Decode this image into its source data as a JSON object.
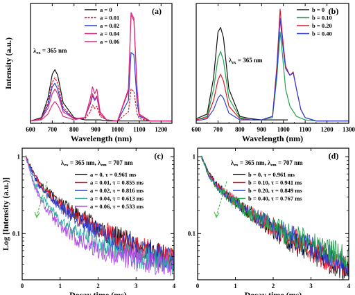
{
  "colors": {
    "black": "#111111",
    "red": "#e0182d",
    "blue": "#2a3fd6",
    "green": "#1fa34a",
    "magenta": "#d8287a",
    "cyan": "#2aa8a0",
    "purple": "#b34ce6",
    "olive": "#4f5a2a",
    "dashed_arrow": "#4fbf4f"
  },
  "chart_data": [
    {
      "type": "line",
      "panel": "(a)",
      "xlabel": "Wavelength (nm)",
      "ylabel": "Intensity (a.u.)",
      "xlim": [
        600,
        1250
      ],
      "xticks": [
        600,
        700,
        800,
        900,
        1000,
        1100,
        1200
      ],
      "ylim": [
        0,
        1.05
      ],
      "y_ticks_shown": false,
      "annotation": {
        "main": "λ",
        "sub": "ex",
        "rest": " = 365 nm"
      },
      "legend_position": "top-center",
      "series": [
        {
          "name": "a = 0",
          "color": "black",
          "x": [
            600,
            650,
            680,
            700,
            712,
            725,
            750,
            800,
            850,
            875,
            890,
            900,
            920,
            950,
            1000,
            1050,
            1062,
            1075,
            1100,
            1150,
            1250
          ],
          "y": [
            0.02,
            0.05,
            0.22,
            0.43,
            0.47,
            0.42,
            0.18,
            0.05,
            0.03,
            0.03,
            0.03,
            0.03,
            0.03,
            0.02,
            0.02,
            0.02,
            0.02,
            0.02,
            0.02,
            0.02,
            0.02
          ]
        },
        {
          "name": "a = 0.01",
          "color": "red",
          "dashed": true,
          "x": [
            600,
            650,
            680,
            700,
            712,
            725,
            750,
            800,
            850,
            875,
            885,
            895,
            905,
            920,
            950,
            1000,
            1050,
            1062,
            1075,
            1090,
            1100,
            1150,
            1250
          ],
          "y": [
            0.02,
            0.04,
            0.18,
            0.36,
            0.4,
            0.35,
            0.14,
            0.04,
            0.04,
            0.1,
            0.16,
            0.13,
            0.15,
            0.06,
            0.03,
            0.02,
            0.1,
            0.3,
            0.28,
            0.08,
            0.04,
            0.02,
            0.02
          ]
        },
        {
          "name": "a = 0.02",
          "color": "blue",
          "x": [
            600,
            650,
            680,
            700,
            712,
            725,
            750,
            800,
            850,
            875,
            885,
            895,
            905,
            920,
            950,
            1000,
            1050,
            1062,
            1075,
            1090,
            1100,
            1150,
            1250
          ],
          "y": [
            0.02,
            0.04,
            0.16,
            0.32,
            0.35,
            0.3,
            0.12,
            0.04,
            0.05,
            0.17,
            0.24,
            0.2,
            0.23,
            0.08,
            0.03,
            0.02,
            0.2,
            0.62,
            0.6,
            0.18,
            0.06,
            0.02,
            0.02
          ]
        },
        {
          "name": "a = 0.04",
          "color": "magenta",
          "x": [
            600,
            650,
            680,
            700,
            712,
            725,
            750,
            800,
            850,
            875,
            885,
            895,
            905,
            920,
            950,
            1000,
            1050,
            1062,
            1075,
            1090,
            1100,
            1150,
            1250
          ],
          "y": [
            0.02,
            0.04,
            0.13,
            0.26,
            0.3,
            0.26,
            0.1,
            0.04,
            0.05,
            0.22,
            0.32,
            0.26,
            0.3,
            0.1,
            0.03,
            0.02,
            0.3,
            0.97,
            0.92,
            0.3,
            0.08,
            0.02,
            0.02
          ]
        },
        {
          "name": "a = 0.06",
          "color": "magenta",
          "x": [
            600,
            650,
            680,
            700,
            712,
            725,
            750,
            800,
            850,
            875,
            885,
            895,
            905,
            920,
            950,
            1000,
            1050,
            1062,
            1075,
            1090,
            1100,
            1150,
            1250
          ],
          "y": [
            0.02,
            0.03,
            0.08,
            0.16,
            0.19,
            0.16,
            0.06,
            0.03,
            0.05,
            0.18,
            0.26,
            0.21,
            0.24,
            0.08,
            0.03,
            0.02,
            0.28,
            0.95,
            0.9,
            0.28,
            0.07,
            0.02,
            0.02
          ]
        }
      ]
    },
    {
      "type": "line",
      "panel": "(b)",
      "xlabel": "Wavelength (nm)",
      "ylabel": "",
      "xlim": [
        600,
        1300
      ],
      "xticks": [
        600,
        700,
        800,
        900,
        1000,
        1100,
        1200,
        1300
      ],
      "ylim": [
        0,
        1.05
      ],
      "y_ticks_shown": false,
      "annotation": {
        "main": "λ",
        "sub": "ex",
        "rest": " = 365 nm"
      },
      "legend_position": "top-right",
      "series": [
        {
          "name": "b = 0",
          "color": "black",
          "x": [
            600,
            650,
            680,
            700,
            712,
            725,
            750,
            800,
            850,
            900,
            950,
            975,
            990,
            1000,
            1010,
            1020
          ],
          "y": [
            0.04,
            0.08,
            0.4,
            0.8,
            0.84,
            0.75,
            0.3,
            0.06,
            0.04,
            0.03,
            0.03,
            0.03,
            0.03,
            0.03,
            0.03,
            0.03
          ]
        },
        {
          "name": "b = 0.10",
          "color": "green",
          "x": [
            600,
            650,
            680,
            700,
            712,
            725,
            750,
            800,
            850,
            900,
            950,
            970,
            985,
            995,
            1010,
            1030,
            1060,
            1100,
            1150,
            1200,
            1300
          ],
          "y": [
            0.03,
            0.06,
            0.3,
            0.57,
            0.63,
            0.55,
            0.22,
            0.05,
            0.03,
            0.03,
            0.05,
            0.4,
            0.8,
            0.62,
            0.3,
            0.15,
            0.06,
            0.03,
            0.02,
            0.02,
            0.02
          ]
        },
        {
          "name": "b = 0.20",
          "color": "red",
          "x": [
            600,
            650,
            680,
            700,
            712,
            725,
            750,
            800,
            850,
            900,
            950,
            970,
            985,
            995,
            1010,
            1030,
            1045,
            1060,
            1080,
            1100,
            1150,
            1200,
            1300
          ],
          "y": [
            0.03,
            0.05,
            0.2,
            0.38,
            0.43,
            0.37,
            0.15,
            0.04,
            0.03,
            0.03,
            0.06,
            0.5,
            1.0,
            0.78,
            0.5,
            0.42,
            0.45,
            0.3,
            0.12,
            0.05,
            0.02,
            0.02,
            0.02
          ]
        },
        {
          "name": "b = 0.40",
          "color": "blue",
          "x": [
            600,
            650,
            680,
            700,
            712,
            725,
            750,
            800,
            850,
            900,
            950,
            970,
            985,
            995,
            1010,
            1030,
            1045,
            1060,
            1080,
            1100,
            1150,
            1200,
            1300
          ],
          "y": [
            0.02,
            0.04,
            0.12,
            0.22,
            0.25,
            0.22,
            0.09,
            0.03,
            0.03,
            0.03,
            0.06,
            0.45,
            0.92,
            0.72,
            0.48,
            0.42,
            0.44,
            0.3,
            0.12,
            0.05,
            0.02,
            0.02,
            0.02
          ]
        }
      ]
    },
    {
      "type": "line",
      "panel": "(c)",
      "xlabel": "Decay time (ms)",
      "ylabel": "Log [Intensity (a.u.)]",
      "xlim": [
        0,
        4
      ],
      "xticks": [
        0,
        1,
        2,
        3,
        4
      ],
      "ylim": [
        0.025,
        1.3
      ],
      "yscale": "log",
      "yticks": [
        1,
        0.1
      ],
      "ytick_labels": [
        "1",
        "0.1"
      ],
      "annotation": {
        "main": "λ",
        "sub": "ex",
        "rest": " = 365 nm, λ",
        "sub2": "em",
        "rest2": " = 707 nm"
      },
      "legend_position": "top-right",
      "series": [
        {
          "name": "a = 0, τ = 0.961 ms",
          "color": "black",
          "x": [
            0.1,
            0.3,
            0.5,
            1,
            1.5,
            2,
            2.5,
            3,
            3.5,
            4
          ],
          "y": [
            1,
            0.6,
            0.42,
            0.25,
            0.17,
            0.12,
            0.09,
            0.07,
            0.055,
            0.045
          ]
        },
        {
          "name": "a = 0.01, τ = 0.855 ms",
          "color": "red",
          "x": [
            0.1,
            0.3,
            0.5,
            1,
            1.5,
            2,
            2.5,
            3,
            3.5,
            4
          ],
          "y": [
            1,
            0.59,
            0.41,
            0.24,
            0.16,
            0.115,
            0.088,
            0.068,
            0.055,
            0.046
          ]
        },
        {
          "name": "a = 0.02, τ = 0.816 ms",
          "color": "blue",
          "x": [
            0.1,
            0.3,
            0.5,
            1,
            1.5,
            2,
            2.5,
            3,
            3.5,
            4
          ],
          "y": [
            1,
            0.56,
            0.38,
            0.22,
            0.15,
            0.105,
            0.08,
            0.063,
            0.052,
            0.045
          ]
        },
        {
          "name": "a = 0.04, τ = 0.613 ms",
          "color": "cyan",
          "x": [
            0.1,
            0.3,
            0.5,
            1,
            1.5,
            2,
            2.5,
            3,
            3.5,
            4
          ],
          "y": [
            1,
            0.48,
            0.3,
            0.15,
            0.1,
            0.075,
            0.06,
            0.05,
            0.045,
            0.042
          ]
        },
        {
          "name": "a = 0.06, τ = 0.533 ms",
          "color": "purple",
          "x": [
            0.1,
            0.3,
            0.5,
            1,
            1.5,
            2,
            2.5,
            3,
            3.5,
            4
          ],
          "y": [
            1,
            0.44,
            0.26,
            0.12,
            0.08,
            0.062,
            0.052,
            0.046,
            0.042,
            0.04
          ]
        }
      ]
    },
    {
      "type": "line",
      "panel": "(d)",
      "xlabel": "Decay time (ms)",
      "ylabel": "",
      "xlim": [
        0,
        4
      ],
      "xticks": [
        0,
        1,
        2,
        3,
        4
      ],
      "ylim": [
        0.025,
        1.3
      ],
      "yscale": "log",
      "yticks": [
        1,
        0.1
      ],
      "ytick_labels": [
        "1",
        "0.1"
      ],
      "annotation": {
        "main": "λ",
        "sub": "ex",
        "rest": " = 365 nm, λ",
        "sub2": "em",
        "rest2": " = 707 nm"
      },
      "legend_position": "top-right",
      "series": [
        {
          "name": "b = 0, τ = 0.961 ms",
          "color": "black",
          "x": [
            0.1,
            0.3,
            0.5,
            1,
            1.5,
            2,
            2.5,
            3,
            3.5,
            4
          ],
          "y": [
            1,
            0.6,
            0.43,
            0.26,
            0.17,
            0.115,
            0.08,
            0.058,
            0.042,
            0.032
          ]
        },
        {
          "name": "b = 0.10, τ = 0.941 ms",
          "color": "red",
          "x": [
            0.1,
            0.3,
            0.5,
            1,
            1.5,
            2,
            2.5,
            3,
            3.5,
            4
          ],
          "y": [
            1,
            0.6,
            0.43,
            0.26,
            0.175,
            0.12,
            0.085,
            0.062,
            0.045,
            0.034
          ]
        },
        {
          "name": "b = 0.20, τ = 0.849 ms",
          "color": "blue",
          "x": [
            0.1,
            0.3,
            0.5,
            1,
            1.5,
            2,
            2.5,
            3,
            3.5,
            4
          ],
          "y": [
            1,
            0.58,
            0.41,
            0.25,
            0.17,
            0.12,
            0.088,
            0.066,
            0.05,
            0.038
          ]
        },
        {
          "name": "b = 0.40, τ = 0.767 ms",
          "color": "green",
          "x": [
            0.1,
            0.3,
            0.5,
            1,
            1.5,
            2,
            2.5,
            3,
            3.5,
            4
          ],
          "y": [
            1,
            0.55,
            0.4,
            0.25,
            0.17,
            0.125,
            0.095,
            0.075,
            0.06,
            0.05
          ]
        }
      ]
    }
  ]
}
